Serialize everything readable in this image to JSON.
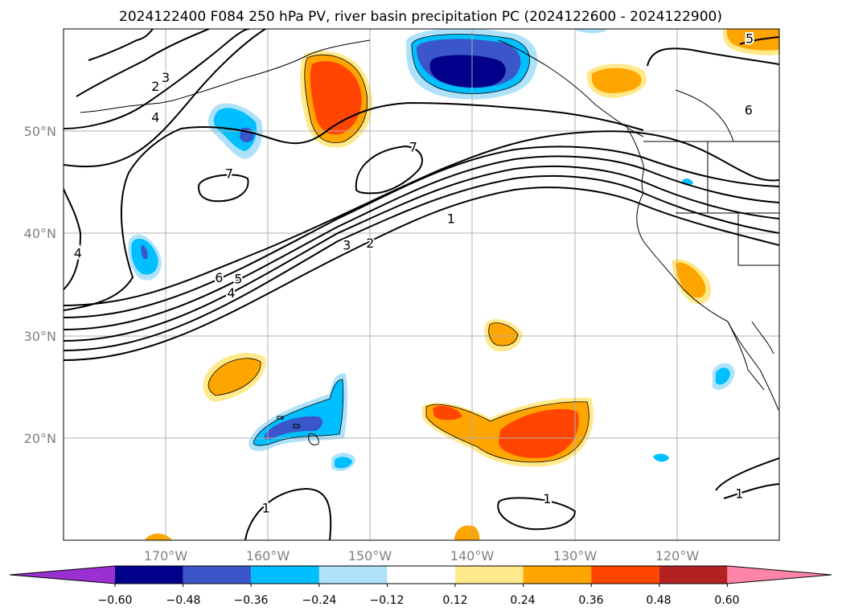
{
  "title": "2024122400 F084 250 hPa PV, river basin precipitation PC (2024122600 - 2024122900)",
  "map": {
    "lon_range": [
      -180,
      -110
    ],
    "lat_range": [
      10,
      60
    ],
    "lon_ticks": [
      {
        "value": -170,
        "label": "170°W"
      },
      {
        "value": -160,
        "label": "160°W"
      },
      {
        "value": -150,
        "label": "150°W"
      },
      {
        "value": -140,
        "label": "140°W"
      },
      {
        "value": -130,
        "label": "130°W"
      },
      {
        "value": -120,
        "label": "120°W"
      }
    ],
    "lat_ticks": [
      {
        "value": 50,
        "label": "50°N"
      },
      {
        "value": 40,
        "label": "40°N"
      },
      {
        "value": 30,
        "label": "30°N"
      },
      {
        "value": 20,
        "label": "20°N"
      }
    ],
    "grid": true,
    "background": "#ffffff"
  },
  "colorbar": {
    "colors": [
      "#9b30d0",
      "#00008b",
      "#3a56c8",
      "#00bfff",
      "#aee2fa",
      "#ffffff",
      "#ffe98a",
      "#ffa500",
      "#ff4500",
      "#b22222",
      "#ff85a8"
    ],
    "ticks": [
      "−0.60",
      "−0.48",
      "−0.36",
      "−0.24",
      "−0.12",
      "0.12",
      "0.24",
      "0.36",
      "0.48",
      "0.60"
    ],
    "extend": "both"
  },
  "pv_contour_labels": [
    {
      "text": "2",
      "lon": -171.0,
      "lat": 54.4
    },
    {
      "text": "3",
      "lon": -170.0,
      "lat": 55.3
    },
    {
      "text": "4",
      "lon": -171.0,
      "lat": 51.4
    },
    {
      "text": "7",
      "lon": -163.8,
      "lat": 45.9
    },
    {
      "text": "7",
      "lon": -145.8,
      "lat": 48.5
    },
    {
      "text": "4",
      "lon": -178.6,
      "lat": 38.1
    },
    {
      "text": "6",
      "lon": -164.8,
      "lat": 35.7
    },
    {
      "text": "5",
      "lon": -162.9,
      "lat": 35.6
    },
    {
      "text": "4",
      "lon": -163.6,
      "lat": 34.2
    },
    {
      "text": "3",
      "lon": -152.3,
      "lat": 38.9
    },
    {
      "text": "2",
      "lon": -150.0,
      "lat": 39.1
    },
    {
      "text": "1",
      "lon": -142.1,
      "lat": 41.5
    },
    {
      "text": "1",
      "lon": -160.2,
      "lat": 13.2
    },
    {
      "text": "1",
      "lon": -132.7,
      "lat": 14.1
    },
    {
      "text": "1",
      "lon": -113.9,
      "lat": 14.6
    },
    {
      "text": "6",
      "lon": -113.0,
      "lat": 52.1
    },
    {
      "text": "5",
      "lon": -112.9,
      "lat": 59.1
    }
  ]
}
